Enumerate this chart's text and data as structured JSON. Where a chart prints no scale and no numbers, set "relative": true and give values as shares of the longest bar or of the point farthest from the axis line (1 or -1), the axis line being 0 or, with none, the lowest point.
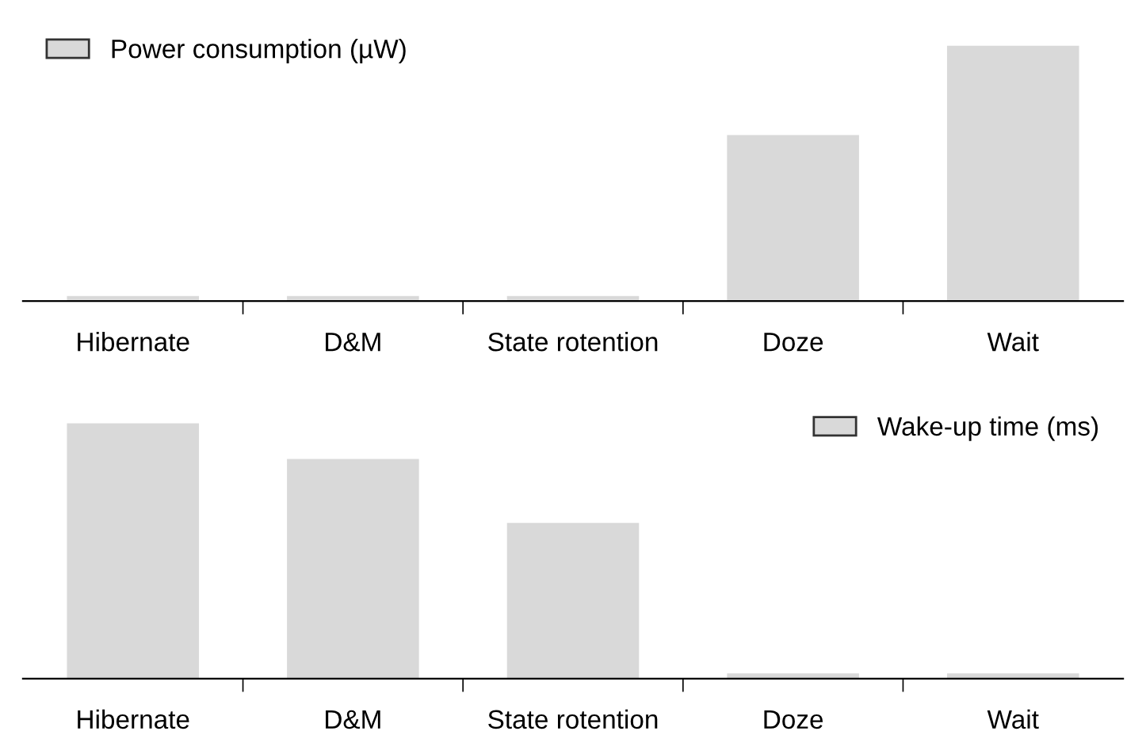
{
  "chart_data": [
    {
      "type": "bar",
      "relative": true,
      "categories": [
        "Hibernate",
        "D&M",
        "State rotention",
        "Doze",
        "Wait"
      ],
      "series": [
        {
          "name": "Power consumption (µW)",
          "color": "#d9d9d9",
          "values": [
            0.02,
            0.02,
            0.02,
            0.65,
            1
          ]
        }
      ],
      "legend": "top left",
      "grid": false
    },
    {
      "type": "bar",
      "relative": true,
      "categories": [
        "Hibernate",
        "D&M",
        "State rotention",
        "Doze",
        "Wait"
      ],
      "series": [
        {
          "name": "Wake-up time (ms)",
          "color": "#d9d9d9",
          "values": [
            1,
            0.86,
            0.61,
            0.02,
            0.02
          ]
        }
      ],
      "legend": "top right",
      "grid": false
    }
  ]
}
